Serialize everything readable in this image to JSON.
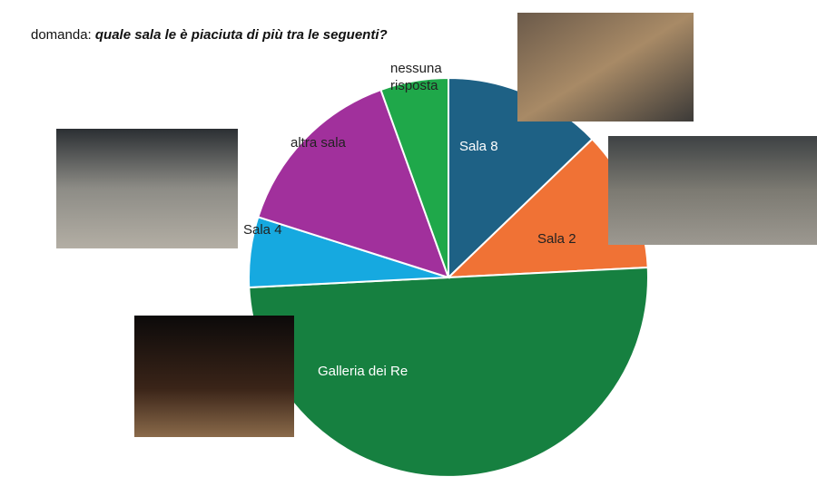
{
  "chart_data": {
    "type": "pie",
    "title_label": "domanda:",
    "title": "quale sala le è piaciuta di più tra le seguenti?",
    "categories": [
      "Sala 8",
      "Sala 2",
      "Galleria dei Re",
      "Sala 4",
      "altra sala",
      "nessuna risposta"
    ],
    "values": [
      12.8,
      11.4,
      50,
      5.7,
      14.6,
      5.5
    ],
    "colors": [
      "#1e6185",
      "#f07235",
      "#168040",
      "#16a9e0",
      "#a1309c",
      "#1fa84a"
    ]
  }
}
